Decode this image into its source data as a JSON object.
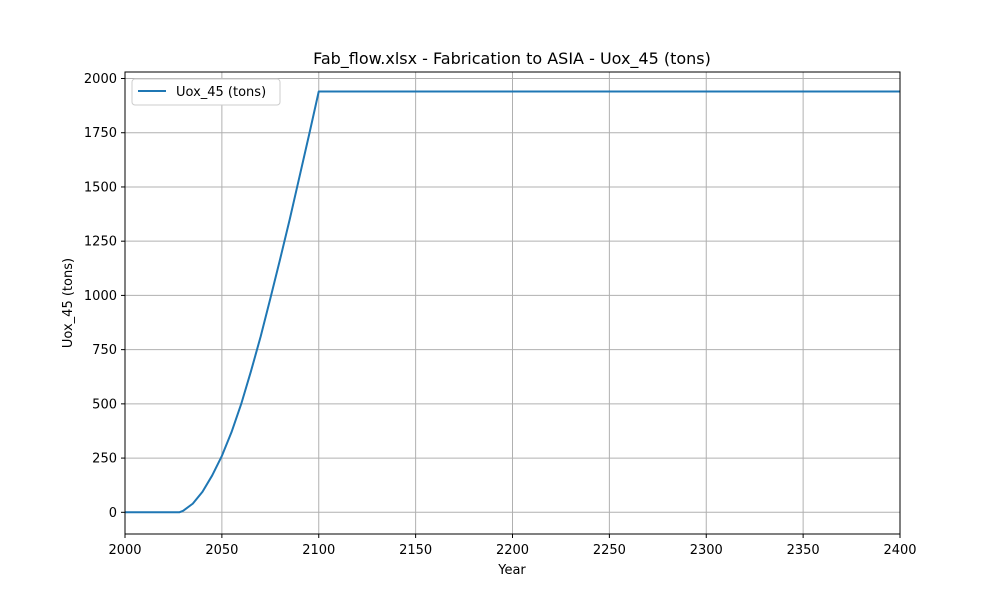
{
  "chart_data": {
    "type": "line",
    "title": "Fab_flow.xlsx - Fabrication to ASIA - Uox_45 (tons)",
    "xlabel": "Year",
    "ylabel": "Uox_45 (tons)",
    "xlim": [
      2000,
      2400
    ],
    "ylim": [
      -100,
      2030
    ],
    "xticks": [
      2000,
      2050,
      2100,
      2150,
      2200,
      2250,
      2300,
      2350,
      2400
    ],
    "yticks": [
      0,
      250,
      500,
      750,
      1000,
      1250,
      1500,
      1750,
      2000
    ],
    "grid": true,
    "legend_position": "top-left",
    "series": [
      {
        "name": "Uox_45 (tons)",
        "color": "#1f77b4",
        "x": [
          2000,
          2028,
          2030,
          2035,
          2040,
          2045,
          2050,
          2055,
          2060,
          2065,
          2070,
          2075,
          2080,
          2085,
          2090,
          2095,
          2100,
          2101,
          2150,
          2200,
          2250,
          2300,
          2350,
          2400
        ],
        "y": [
          0,
          0,
          7,
          40,
          95,
          170,
          260,
          370,
          500,
          650,
          810,
          985,
          1165,
          1350,
          1545,
          1740,
          1940,
          1940,
          1940,
          1940,
          1940,
          1940,
          1940,
          1940
        ]
      }
    ]
  }
}
